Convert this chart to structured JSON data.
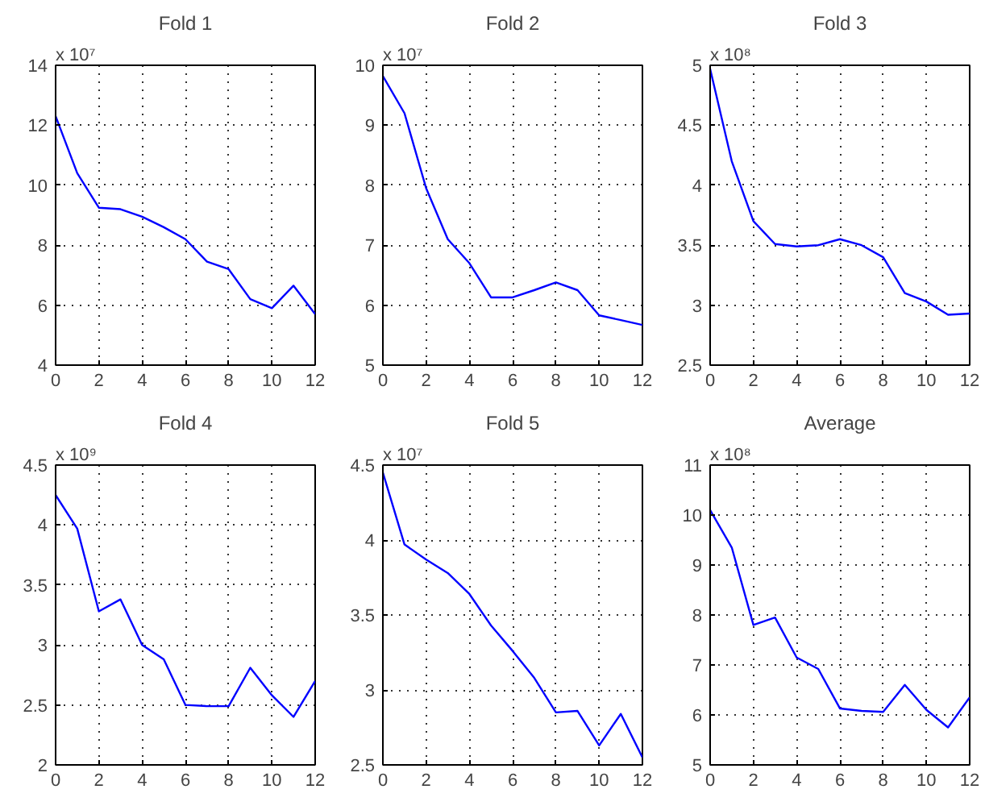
{
  "chart_data": [
    {
      "type": "line",
      "title": "Fold 1",
      "annotations": [
        "x 10⁷"
      ],
      "x": [
        0,
        1,
        2,
        3,
        4,
        5,
        6,
        7,
        8,
        9,
        10,
        11,
        12
      ],
      "series": [
        {
          "color": "#0000ff",
          "values": [
            12.3,
            10.4,
            9.25,
            9.2,
            8.95,
            8.6,
            8.2,
            7.45,
            7.2,
            6.2,
            5.9,
            6.65,
            5.7
          ]
        }
      ],
      "xlim": [
        0,
        12
      ],
      "xticks": [
        0,
        2,
        4,
        6,
        8,
        10,
        12
      ],
      "ylim": [
        4,
        14
      ],
      "yticks": [
        4,
        6,
        8,
        10,
        12,
        14
      ],
      "grid": true,
      "line_style": "solid"
    },
    {
      "type": "line",
      "title": "Fold 2",
      "annotations": [
        "x 10⁷"
      ],
      "x": [
        0,
        1,
        2,
        3,
        4,
        5,
        6,
        7,
        8,
        9,
        10,
        11,
        12
      ],
      "series": [
        {
          "color": "#0000ff",
          "values": [
            9.82,
            9.2,
            7.95,
            7.1,
            6.7,
            6.13,
            6.13,
            6.25,
            6.38,
            6.25,
            5.83,
            5.75,
            5.67
          ]
        }
      ],
      "xlim": [
        0,
        12
      ],
      "xticks": [
        0,
        2,
        4,
        6,
        8,
        10,
        12
      ],
      "ylim": [
        5,
        10
      ],
      "yticks": [
        5,
        6,
        7,
        8,
        9,
        10
      ],
      "grid": true,
      "line_style": "solid"
    },
    {
      "type": "line",
      "title": "Fold 3",
      "annotations": [
        "x 10⁸"
      ],
      "x": [
        0,
        1,
        2,
        3,
        4,
        5,
        6,
        7,
        8,
        9,
        10,
        11,
        12
      ],
      "series": [
        {
          "color": "#0000ff",
          "values": [
            4.97,
            4.2,
            3.7,
            3.51,
            3.49,
            3.5,
            3.55,
            3.5,
            3.4,
            3.1,
            3.03,
            2.92,
            2.93
          ]
        }
      ],
      "xlim": [
        0,
        12
      ],
      "xticks": [
        0,
        2,
        4,
        6,
        8,
        10,
        12
      ],
      "ylim": [
        2.5,
        5
      ],
      "yticks": [
        2.5,
        3,
        3.5,
        4,
        4.5,
        5
      ],
      "grid": true,
      "line_style": "solid"
    },
    {
      "type": "line",
      "title": "Fold 4",
      "annotations": [
        "x 10⁹"
      ],
      "x": [
        0,
        1,
        2,
        3,
        4,
        5,
        6,
        7,
        8,
        9,
        10,
        11,
        12
      ],
      "series": [
        {
          "color": "#0000ff",
          "values": [
            4.25,
            3.97,
            3.28,
            3.38,
            3.0,
            2.88,
            2.5,
            2.49,
            2.49,
            2.81,
            2.58,
            2.4,
            2.7
          ]
        }
      ],
      "xlim": [
        0,
        12
      ],
      "xticks": [
        0,
        2,
        4,
        6,
        8,
        10,
        12
      ],
      "ylim": [
        2,
        4.5
      ],
      "yticks": [
        2,
        2.5,
        3,
        3.5,
        4,
        4.5
      ],
      "grid": true,
      "line_style": "solid"
    },
    {
      "type": "line",
      "title": "Fold 5",
      "annotations": [
        "x 10⁷"
      ],
      "x": [
        0,
        1,
        2,
        3,
        4,
        5,
        6,
        7,
        8,
        9,
        10,
        11,
        12
      ],
      "series": [
        {
          "color": "#0000ff",
          "values": [
            4.45,
            3.97,
            3.87,
            3.78,
            3.64,
            3.43,
            3.26,
            3.08,
            2.85,
            2.86,
            2.63,
            2.84,
            2.55
          ]
        }
      ],
      "xlim": [
        0,
        12
      ],
      "xticks": [
        0,
        2,
        4,
        6,
        8,
        10,
        12
      ],
      "ylim": [
        2.5,
        4.5
      ],
      "yticks": [
        2.5,
        3,
        3.5,
        4,
        4.5
      ],
      "grid": true,
      "line_style": "solid"
    },
    {
      "type": "line",
      "title": "Average",
      "annotations": [
        "x 10⁸"
      ],
      "x": [
        0,
        1,
        2,
        3,
        4,
        5,
        6,
        7,
        8,
        9,
        10,
        11,
        12
      ],
      "series": [
        {
          "color": "#0000ff",
          "values": [
            10.1,
            9.35,
            7.8,
            7.95,
            7.15,
            6.92,
            6.13,
            6.08,
            6.06,
            6.6,
            6.1,
            5.75,
            6.35
          ]
        }
      ],
      "xlim": [
        0,
        12
      ],
      "xticks": [
        0,
        2,
        4,
        6,
        8,
        10,
        12
      ],
      "ylim": [
        5,
        11
      ],
      "yticks": [
        5,
        6,
        7,
        8,
        9,
        10,
        11
      ],
      "grid": true,
      "line_style": "solid"
    }
  ]
}
